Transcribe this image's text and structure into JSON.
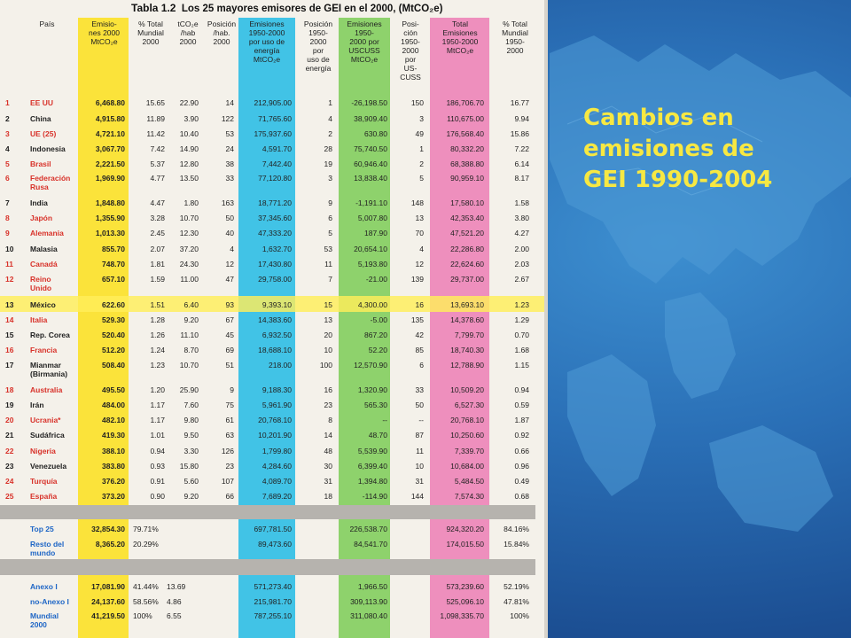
{
  "slide": {
    "heading": "Cambios en\nemisiones de\nGEI 1990-2004"
  },
  "table": {
    "caption_num": "Tabla 1.2",
    "caption": "Los 25 mayores emisores de GEI en el 2000, (MtCO₂e)",
    "headers": [
      "País",
      "Emisio-\nnes 2000\nMtCO₂e",
      "% Total\nMundial\n2000",
      "tCO₂e\n/hab\n2000",
      "Posición\n/hab.\n2000",
      "Emisiones\n1950-2000\npor uso de\nenergía\nMtCO₂e",
      "Posición\n1950-\n2000\npor\nuso de\nenergía",
      "Emisiones\n1950-\n2000 por\nUSCUSS\nMtCO₂e",
      "Posi-\nción\n1950-\n2000\npor\nUS-\nCUSS",
      "Total\nEmisiones\n1950-2000\nMtCO₂e",
      "% Total\nMundial\n1950-\n2000"
    ],
    "rows": [
      {
        "n": "1",
        "pais": "EE UU",
        "em": "6,468.80",
        "pct": "15.65",
        "hab": "22.90",
        "pos": "14",
        "en": "212,905.00",
        "pen": "1",
        "us": "-26,198.50",
        "pus": "150",
        "tot": "186,706.70",
        "ptot": "16.77"
      },
      {
        "n": "2",
        "pais": "China",
        "em": "4,915.80",
        "pct": "11.89",
        "hab": "3.90",
        "pos": "122",
        "en": "71,765.60",
        "pen": "4",
        "us": "38,909.40",
        "pus": "3",
        "tot": "110,675.00",
        "ptot": "9.94"
      },
      {
        "n": "3",
        "pais": "UE (25)",
        "em": "4,721.10",
        "pct": "11.42",
        "hab": "10.40",
        "pos": "53",
        "en": "175,937.60",
        "pen": "2",
        "us": "630.80",
        "pus": "49",
        "tot": "176,568.40",
        "ptot": "15.86"
      },
      {
        "n": "4",
        "pais": "Indonesia",
        "em": "3,067.70",
        "pct": "7.42",
        "hab": "14.90",
        "pos": "24",
        "en": "4,591.70",
        "pen": "28",
        "us": "75,740.50",
        "pus": "1",
        "tot": "80,332.20",
        "ptot": "7.22"
      },
      {
        "n": "5",
        "pais": "Brasil",
        "em": "2,221.50",
        "pct": "5.37",
        "hab": "12.80",
        "pos": "38",
        "en": "7,442.40",
        "pen": "19",
        "us": "60,946.40",
        "pus": "2",
        "tot": "68,388.80",
        "ptot": "6.14"
      },
      {
        "n": "6",
        "pais": "Federación\nRusa",
        "em": "1,969.90",
        "pct": "4.77",
        "hab": "13.50",
        "pos": "33",
        "en": "77,120.80",
        "pen": "3",
        "us": "13,838.40",
        "pus": "5",
        "tot": "90,959.10",
        "ptot": "8.17"
      },
      {
        "n": "7",
        "pais": "India",
        "em": "1,848.80",
        "pct": "4.47",
        "hab": "1.80",
        "pos": "163",
        "en": "18,771.20",
        "pen": "9",
        "us": "-1,191.10",
        "pus": "148",
        "tot": "17,580.10",
        "ptot": "1.58"
      },
      {
        "n": "8",
        "pais": "Japón",
        "em": "1,355.90",
        "pct": "3.28",
        "hab": "10.70",
        "pos": "50",
        "en": "37,345.60",
        "pen": "6",
        "us": "5,007.80",
        "pus": "13",
        "tot": "42,353.40",
        "ptot": "3.80"
      },
      {
        "n": "9",
        "pais": "Alemania",
        "em": "1,013.30",
        "pct": "2.45",
        "hab": "12.30",
        "pos": "40",
        "en": "47,333.20",
        "pen": "5",
        "us": "187.90",
        "pus": "70",
        "tot": "47,521.20",
        "ptot": "4.27"
      },
      {
        "n": "10",
        "pais": "Malasia",
        "em": "855.70",
        "pct": "2.07",
        "hab": "37.20",
        "pos": "4",
        "en": "1,632.70",
        "pen": "53",
        "us": "20,654.10",
        "pus": "4",
        "tot": "22,286.80",
        "ptot": "2.00"
      },
      {
        "n": "11",
        "pais": "Canadá",
        "em": "748.70",
        "pct": "1.81",
        "hab": "24.30",
        "pos": "12",
        "en": "17,430.80",
        "pen": "11",
        "us": "5,193.80",
        "pus": "12",
        "tot": "22,624.60",
        "ptot": "2.03"
      },
      {
        "n": "12",
        "pais": "Reino\nUnido",
        "em": "657.10",
        "pct": "1.59",
        "hab": "11.00",
        "pos": "47",
        "en": "29,758.00",
        "pen": "7",
        "us": "-21.00",
        "pus": "139",
        "tot": "29,737.00",
        "ptot": "2.67"
      },
      {
        "n": "13",
        "pais": "México",
        "em": "622.60",
        "pct": "1.51",
        "hab": "6.40",
        "pos": "93",
        "en": "9,393.10",
        "pen": "15",
        "us": "4,300.00",
        "pus": "16",
        "tot": "13,693.10",
        "ptot": "1.23"
      },
      {
        "n": "14",
        "pais": "Italia",
        "em": "529.30",
        "pct": "1.28",
        "hab": "9.20",
        "pos": "67",
        "en": "14,383.60",
        "pen": "13",
        "us": "-5.00",
        "pus": "135",
        "tot": "14,378.60",
        "ptot": "1.29"
      },
      {
        "n": "15",
        "pais": "Rep. Corea",
        "em": "520.40",
        "pct": "1.26",
        "hab": "11.10",
        "pos": "45",
        "en": "6,932.50",
        "pen": "20",
        "us": "867.20",
        "pus": "42",
        "tot": "7,799.70",
        "ptot": "0.70"
      },
      {
        "n": "16",
        "pais": "Francia",
        "em": "512.20",
        "pct": "1.24",
        "hab": "8.70",
        "pos": "69",
        "en": "18,688.10",
        "pen": "10",
        "us": "52.20",
        "pus": "85",
        "tot": "18,740.30",
        "ptot": "1.68"
      },
      {
        "n": "17",
        "pais": "Mianmar\n(Birmania)",
        "em": "508.40",
        "pct": "1.23",
        "hab": "10.70",
        "pos": "51",
        "en": "218.00",
        "pen": "100",
        "us": "12,570.90",
        "pus": "6",
        "tot": "12,788.90",
        "ptot": "1.15"
      },
      {
        "n": "18",
        "pais": "Australia",
        "em": "495.50",
        "pct": "1.20",
        "hab": "25.90",
        "pos": "9",
        "en": "9,188.30",
        "pen": "16",
        "us": "1,320.90",
        "pus": "33",
        "tot": "10,509.20",
        "ptot": "0.94"
      },
      {
        "n": "19",
        "pais": "Irán",
        "em": "484.00",
        "pct": "1.17",
        "hab": "7.60",
        "pos": "75",
        "en": "5,961.90",
        "pen": "23",
        "us": "565.30",
        "pus": "50",
        "tot": "6,527.30",
        "ptot": "0.59"
      },
      {
        "n": "20",
        "pais": "Ucrania*",
        "em": "482.10",
        "pct": "1.17",
        "hab": "9.80",
        "pos": "61",
        "en": "20,768.10",
        "pen": "8",
        "us": "--",
        "pus": "--",
        "tot": "20,768.10",
        "ptot": "1.87"
      },
      {
        "n": "21",
        "pais": "Sudáfrica",
        "em": "419.30",
        "pct": "1.01",
        "hab": "9.50",
        "pos": "63",
        "en": "10,201.90",
        "pen": "14",
        "us": "48.70",
        "pus": "87",
        "tot": "10,250.60",
        "ptot": "0.92"
      },
      {
        "n": "22",
        "pais": "Nigeria",
        "em": "388.10",
        "pct": "0.94",
        "hab": "3.30",
        "pos": "126",
        "en": "1,799.80",
        "pen": "48",
        "us": "5,539.90",
        "pus": "11",
        "tot": "7,339.70",
        "ptot": "0.66"
      },
      {
        "n": "23",
        "pais": "Venezuela",
        "em": "383.80",
        "pct": "0.93",
        "hab": "15.80",
        "pos": "23",
        "en": "4,284.60",
        "pen": "30",
        "us": "6,399.40",
        "pus": "10",
        "tot": "10,684.00",
        "ptot": "0.96"
      },
      {
        "n": "24",
        "pais": "Turquía",
        "em": "376.20",
        "pct": "0.91",
        "hab": "5.60",
        "pos": "107",
        "en": "4,089.70",
        "pen": "31",
        "us": "1,394.80",
        "pus": "31",
        "tot": "5,484.50",
        "ptot": "0.49"
      },
      {
        "n": "25",
        "pais": "España",
        "em": "373.20",
        "pct": "0.90",
        "hab": "9.20",
        "pos": "66",
        "en": "7,689.20",
        "pen": "18",
        "us": "-114.90",
        "pus": "144",
        "tot": "7,574.30",
        "ptot": "0.68"
      }
    ],
    "summary1": [
      {
        "pais": "Top 25",
        "em": "32,854.30",
        "pct": "79.71%",
        "hab": "",
        "en": "697,781.50",
        "us": "226,538.70",
        "tot": "924,320.20",
        "ptot": "84.16%"
      },
      {
        "pais": "Resto del\nmundo",
        "em": "8,365.20",
        "pct": "20.29%",
        "hab": "",
        "en": "89,473.60",
        "us": "84,541.70",
        "tot": "174,015.50",
        "ptot": "15.84%"
      }
    ],
    "summary2": [
      {
        "pais": "Anexo I",
        "em": "17,081.90",
        "pct": "41.44%",
        "hab": "13.69",
        "en": "571,273.40",
        "us": "1,966.50",
        "tot": "573,239.60",
        "ptot": "52.19%"
      },
      {
        "pais": "no-Anexo I",
        "em": "24,137.60",
        "pct": "58.56%",
        "hab": "4.86",
        "en": "215,981.70",
        "us": "309,113.90",
        "tot": "525,096.10",
        "ptot": "47.81%"
      },
      {
        "pais": "Mundial\n2000",
        "em": "41,219.50",
        "pct": "100%",
        "hab": "6.55",
        "en": "787,255.10",
        "us": "311,080.40",
        "tot": "1,098,335.70",
        "ptot": "100%"
      }
    ]
  },
  "colors": {
    "heading": "#f7e842",
    "country_red": "#d8322a",
    "summary_blue": "#1e66c6",
    "col_yellow": "#fbe33a",
    "col_blue": "#41c3e6",
    "col_green": "#8ed26c",
    "col_pink": "#ee8fbd"
  }
}
